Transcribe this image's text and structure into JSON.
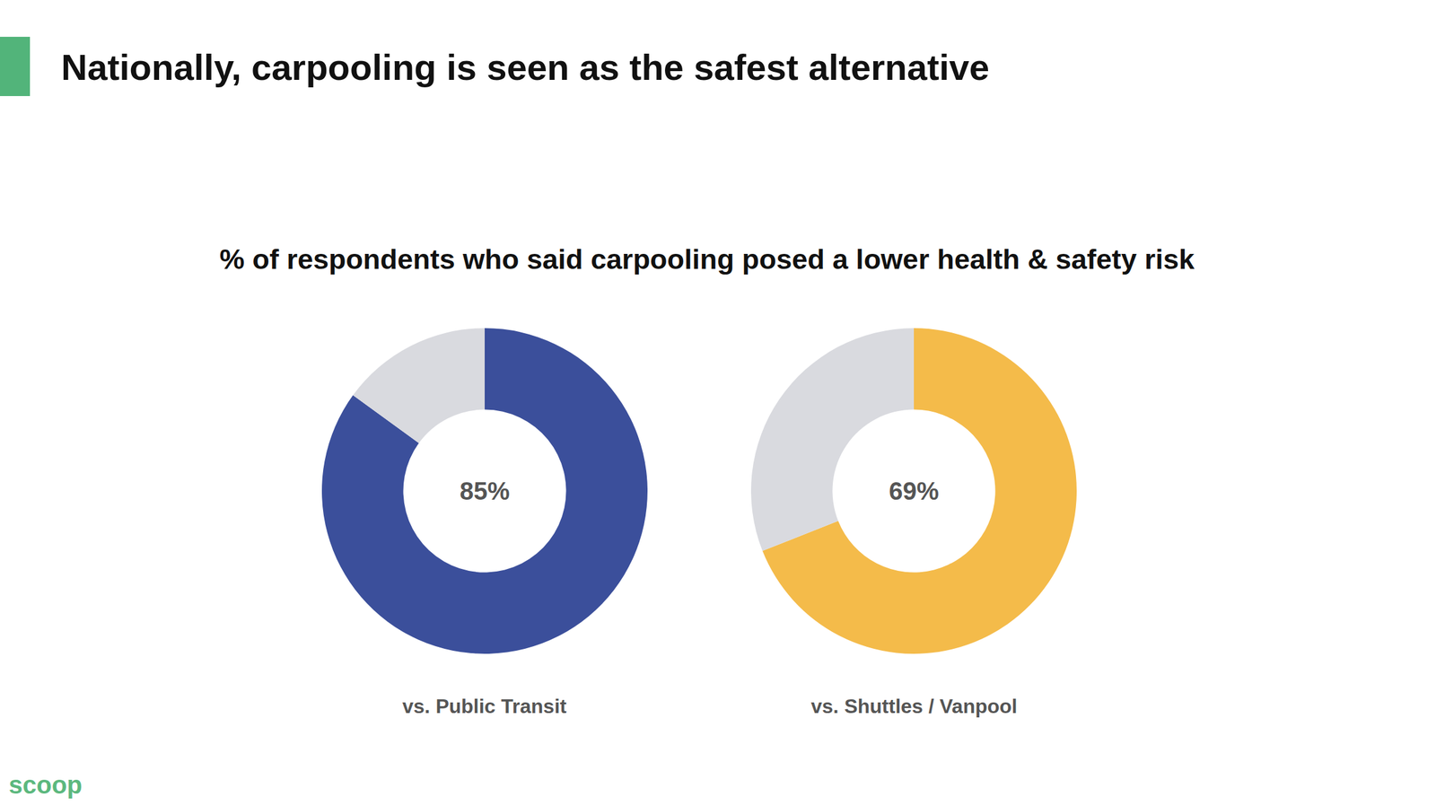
{
  "header": {
    "title": "Nationally, carpooling is seen as the safest alternative",
    "subtitle": "% of respondents who said carpooling posed a lower health & safety risk"
  },
  "footer": {
    "logo": "scoop"
  },
  "chart_data": [
    {
      "type": "pie",
      "title": "vs. Public Transit",
      "values": [
        85,
        15
      ],
      "colors": [
        "#3b4f9b",
        "#d9dadf"
      ],
      "annotations": [
        "85%"
      ],
      "data_labels": false
    },
    {
      "type": "pie",
      "title": "vs. Shuttles / Vanpool",
      "values": [
        69,
        31
      ],
      "colors": [
        "#f4bb4a",
        "#d9dadf"
      ],
      "annotations": [
        "69%"
      ],
      "data_labels": false
    }
  ]
}
